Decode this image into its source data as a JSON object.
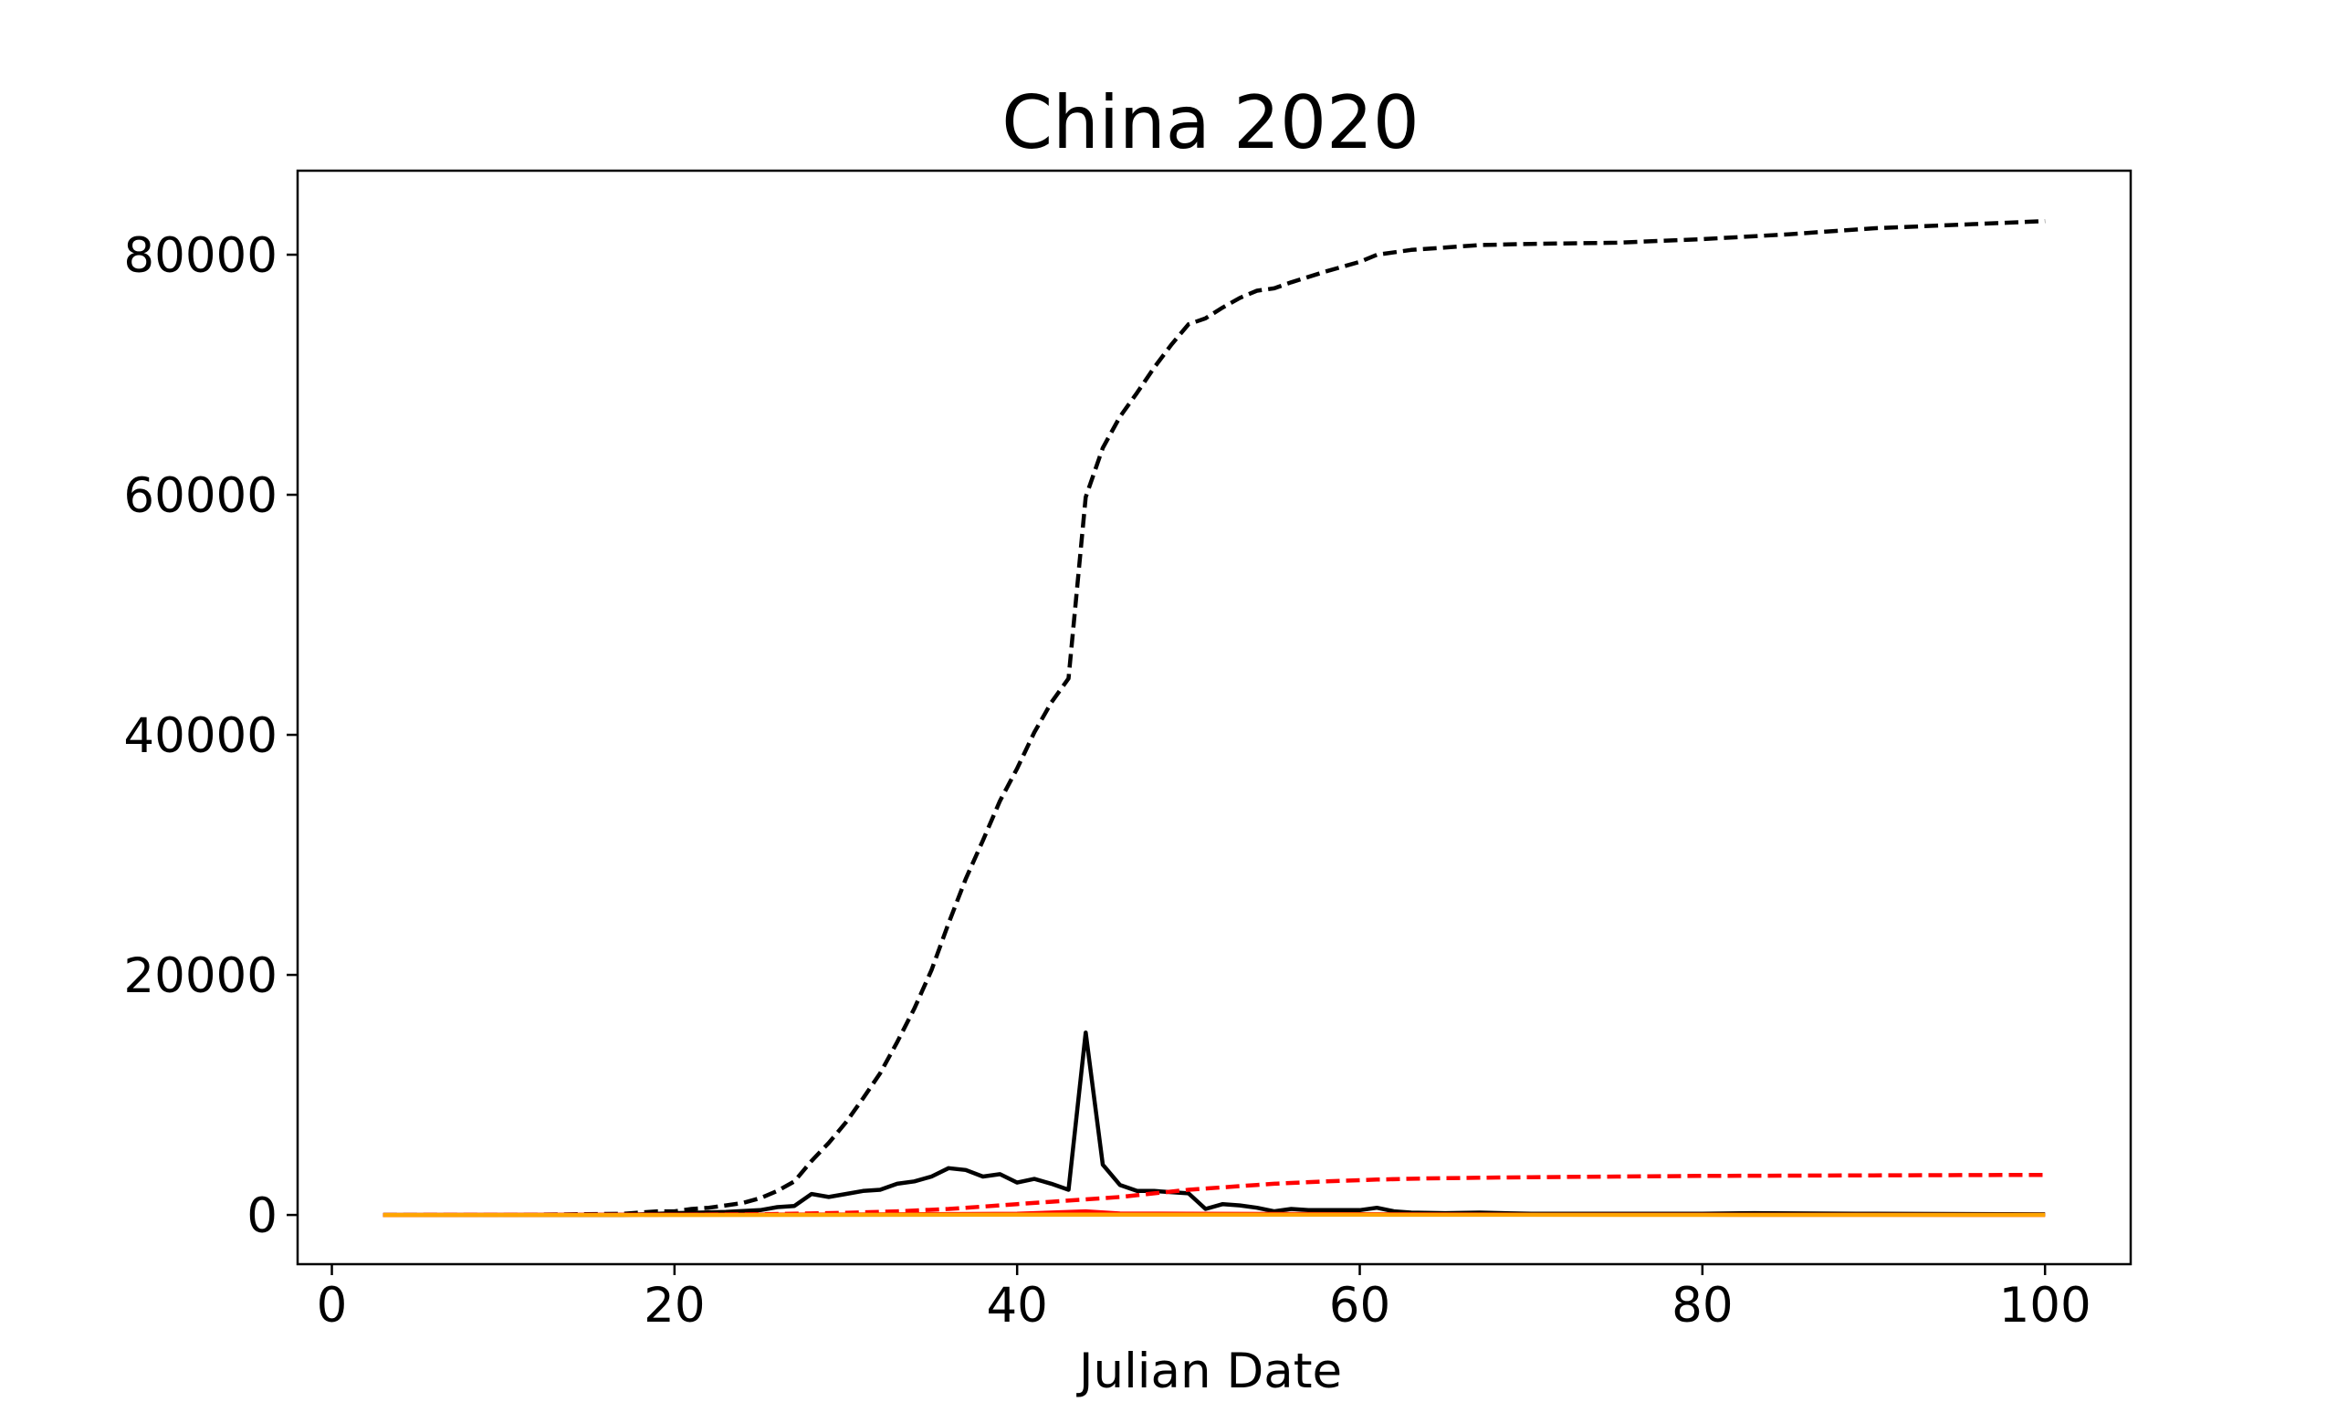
{
  "chart_data": {
    "type": "line",
    "title": "China 2020",
    "xlabel": "Julian Date",
    "ylabel": "",
    "xlim": [
      -2,
      105
    ],
    "ylim": [
      -4100,
      87000
    ],
    "xticks": [
      0,
      20,
      40,
      60,
      80,
      100
    ],
    "yticks": [
      0,
      20000,
      40000,
      60000,
      80000
    ],
    "grid": false,
    "legend": "none",
    "series": [
      {
        "style": "dashed",
        "color": "#000000",
        "x": [
          3,
          10,
          17,
          18,
          19,
          20,
          21,
          22,
          23,
          24,
          25,
          26,
          27,
          28,
          29,
          30,
          31,
          32,
          33,
          34,
          35,
          36,
          37,
          38,
          39,
          40,
          41,
          42,
          43,
          44,
          45,
          46,
          47,
          48,
          49,
          50,
          51,
          52,
          53,
          54,
          55,
          56,
          58,
          60,
          61,
          63,
          67,
          70,
          75,
          80,
          85,
          90,
          95,
          100
        ],
        "y": [
          0,
          0,
          100,
          200,
          300,
          300,
          500,
          600,
          800,
          1000,
          1400,
          2000,
          2800,
          4500,
          6000,
          7700,
          9700,
          11800,
          14400,
          17200,
          20400,
          24300,
          28000,
          31200,
          34500,
          37200,
          40200,
          42700,
          44700,
          59800,
          63900,
          66500,
          68500,
          70600,
          72500,
          74200,
          74700,
          75600,
          76400,
          77000,
          77200,
          77700,
          78600,
          79400,
          80000,
          80400,
          80800,
          80900,
          81000,
          81300,
          81700,
          82200,
          82500,
          82800
        ]
      },
      {
        "style": "solid",
        "color": "#000000",
        "x": [
          3,
          10,
          17,
          20,
          23,
          25,
          26,
          27,
          28,
          29,
          30,
          31,
          32,
          33,
          34,
          35,
          36,
          37,
          38,
          39,
          40,
          41,
          42,
          43,
          44,
          45,
          46,
          47,
          48,
          49,
          50,
          51,
          52,
          53,
          54,
          55,
          56,
          57,
          58,
          59,
          60,
          61,
          62,
          63,
          65,
          67,
          70,
          75,
          80,
          83,
          90,
          100
        ],
        "y": [
          0,
          0,
          0,
          150,
          250,
          400,
          650,
          750,
          1750,
          1500,
          1750,
          2000,
          2100,
          2600,
          2800,
          3200,
          3900,
          3750,
          3200,
          3400,
          2700,
          3000,
          2600,
          2100,
          15200,
          4200,
          2500,
          2000,
          2000,
          1900,
          1800,
          500,
          900,
          800,
          600,
          300,
          500,
          400,
          400,
          400,
          400,
          600,
          300,
          200,
          150,
          200,
          100,
          100,
          100,
          150,
          100,
          50
        ]
      },
      {
        "style": "dashed",
        "color": "#ff0000",
        "x": [
          3,
          20,
          25,
          30,
          33,
          36,
          38,
          40,
          42,
          44,
          46,
          48,
          50,
          52,
          54,
          55,
          58,
          61,
          64,
          67,
          70,
          75,
          80,
          85,
          90,
          95,
          100
        ],
        "y": [
          0,
          20,
          60,
          170,
          300,
          500,
          700,
          900,
          1100,
          1300,
          1500,
          1800,
          2100,
          2300,
          2500,
          2600,
          2800,
          2950,
          3050,
          3100,
          3150,
          3200,
          3250,
          3280,
          3300,
          3320,
          3340
        ]
      },
      {
        "style": "solid",
        "color": "#ff0000",
        "x": [
          3,
          30,
          40,
          44,
          46,
          50,
          60,
          70,
          80,
          90,
          100
        ],
        "y": [
          0,
          40,
          100,
          300,
          120,
          100,
          60,
          30,
          20,
          15,
          10
        ]
      },
      {
        "style": "solid",
        "color": "#ffa500",
        "x": [
          3,
          20,
          40,
          60,
          80,
          100
        ],
        "y": [
          0,
          0,
          20,
          20,
          10,
          5
        ]
      }
    ]
  }
}
